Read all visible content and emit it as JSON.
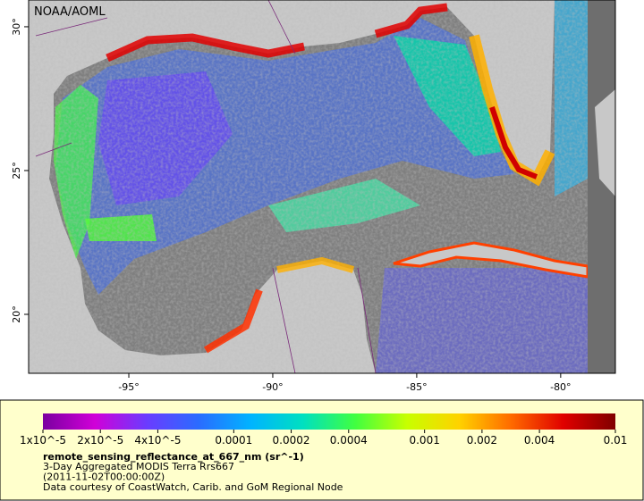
{
  "map": {
    "watermark": "NOAA/AOML",
    "xlim": [
      -98.48,
      -78.1
    ],
    "ylim": [
      17.95,
      30.93
    ],
    "xticks": [
      {
        "value": -95,
        "label": "-95°"
      },
      {
        "value": -90,
        "label": "-90°"
      },
      {
        "value": -85,
        "label": "-85°"
      },
      {
        "value": -80,
        "label": "-80°"
      }
    ],
    "yticks": [
      {
        "value": 20,
        "label": "20°"
      },
      {
        "value": 25,
        "label": "25°"
      },
      {
        "value": 30,
        "label": "30°"
      }
    ]
  },
  "colorbar": {
    "scale": "log",
    "lim": [
      1e-05,
      0.01
    ],
    "colors": [
      "#7a00a0",
      "#d000d8",
      "#6a3cff",
      "#2a6cff",
      "#00b4ff",
      "#00e0c0",
      "#40ff40",
      "#c8ff00",
      "#ffd200",
      "#ff6a00",
      "#e00000",
      "#800000"
    ],
    "ticks": [
      {
        "value": 1e-05,
        "label": "1x10^-5"
      },
      {
        "value": 2e-05,
        "label": "2x10^-5"
      },
      {
        "value": 4e-05,
        "label": "4x10^-5"
      },
      0.0001,
      0.0002,
      0.0004,
      0.001,
      0.002,
      0.004,
      0.01
    ]
  },
  "legend": {
    "variable": "remote_sensing_reflectance_at_667_nm (sr^-1)",
    "lines": [
      "3-Day Aggregated MODIS Terra Rrs667",
      "(2011-11-02T00:00:00Z)",
      "Data courtesy of CoastWatch, Carib. and GoM Regional Node"
    ]
  }
}
